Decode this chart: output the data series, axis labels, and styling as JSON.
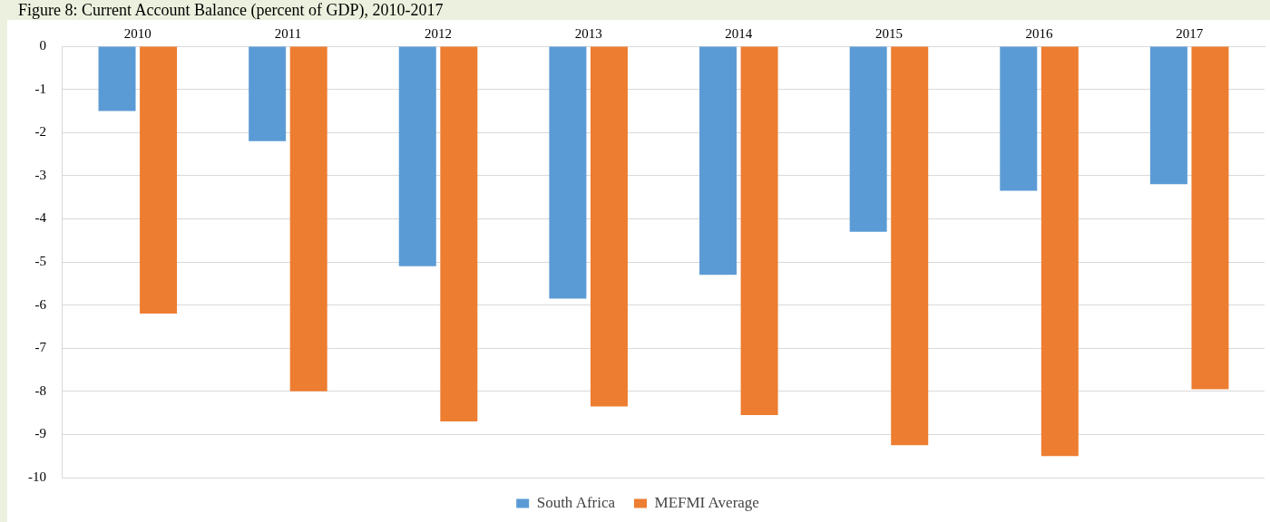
{
  "chart_data": {
    "type": "bar",
    "title": "Figure 8: Current Account Balance (percent of GDP), 2010-2017",
    "categories": [
      "2010",
      "2011",
      "2012",
      "2013",
      "2014",
      "2015",
      "2016",
      "2017"
    ],
    "series": [
      {
        "name": "South Africa",
        "color": "#5b9bd5",
        "values": [
          -1.5,
          -2.2,
          -5.1,
          -5.85,
          -5.3,
          -4.3,
          -3.35,
          -3.2
        ]
      },
      {
        "name": "MEFMI Average",
        "color": "#ed7d31",
        "values": [
          -6.2,
          -8.0,
          -8.7,
          -8.35,
          -8.55,
          -9.25,
          -9.5,
          -7.95
        ]
      }
    ],
    "ylim": [
      -10,
      0
    ],
    "yticks": [
      -10,
      -9,
      -8,
      -7,
      -6,
      -5,
      -4,
      -3,
      -2,
      -1,
      0
    ],
    "grid": "y",
    "legend": "bottom"
  }
}
